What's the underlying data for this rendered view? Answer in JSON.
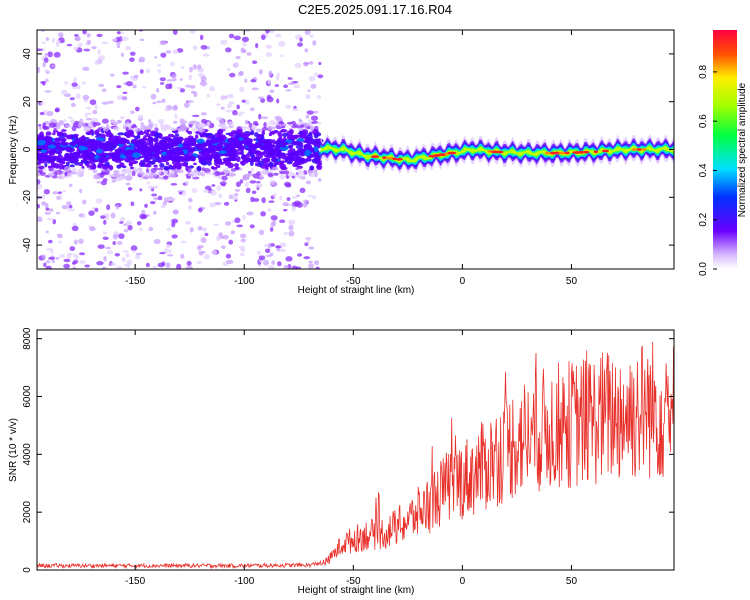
{
  "figure_title": "C2E5.2025.091.17.16.R04",
  "chart_data": [
    {
      "type": "heatmap",
      "title": "",
      "xlabel": "Height of straight line (km)",
      "ylabel": "Frequency (Hz)",
      "xlim": [
        -195,
        97
      ],
      "ylim": [
        -50,
        50
      ],
      "xticks": [
        -150,
        -100,
        -50,
        0,
        50
      ],
      "yticks": [
        -40,
        -20,
        0,
        20,
        40
      ],
      "grid": false,
      "colormap": "rainbow (purple to red)",
      "colorbar": {
        "label": "Normalized spectral amplitude",
        "range": [
          0.0,
          0.97
        ],
        "ticks": [
          0.0,
          0.2,
          0.4,
          0.6,
          0.8
        ]
      },
      "description_points": {
        "noise_region_x": [
          -195,
          -65
        ],
        "signal_center_freq": [
          [
            -65,
            0.5
          ],
          [
            -55,
            0.0
          ],
          [
            -45,
            -2.5
          ],
          [
            -35,
            -3.5
          ],
          [
            -25,
            -4.5
          ],
          [
            -15,
            -3.0
          ],
          [
            -5,
            -1.5
          ],
          [
            5,
            0.0
          ],
          [
            15,
            -1.0
          ],
          [
            30,
            -1.5
          ],
          [
            45,
            -1.5
          ],
          [
            60,
            -1.0
          ],
          [
            75,
            0.0
          ],
          [
            95,
            0.0
          ]
        ]
      }
    },
    {
      "type": "line",
      "title": "",
      "xlabel": "Height of straight line (km)",
      "ylabel": "SNR (10 * v/v)",
      "xlim": [
        -195,
        97
      ],
      "ylim": [
        0,
        8300
      ],
      "xticks": [
        -150,
        -100,
        -50,
        0,
        50
      ],
      "yticks": [
        0,
        2000,
        4000,
        6000,
        8000
      ],
      "grid": false,
      "line_color": "#e8302a",
      "trend_points": [
        [
          -195,
          150
        ],
        [
          -150,
          150
        ],
        [
          -100,
          150
        ],
        [
          -70,
          170
        ],
        [
          -62,
          300
        ],
        [
          -55,
          900
        ],
        [
          -45,
          1200
        ],
        [
          -35,
          1300
        ],
        [
          -25,
          1700
        ],
        [
          -15,
          2300
        ],
        [
          -5,
          3000
        ],
        [
          5,
          3300
        ],
        [
          15,
          3900
        ],
        [
          25,
          4500
        ],
        [
          35,
          4800
        ],
        [
          45,
          5000
        ],
        [
          55,
          5100
        ],
        [
          65,
          5300
        ],
        [
          75,
          5400
        ],
        [
          85,
          5600
        ],
        [
          95,
          5500
        ]
      ]
    }
  ]
}
